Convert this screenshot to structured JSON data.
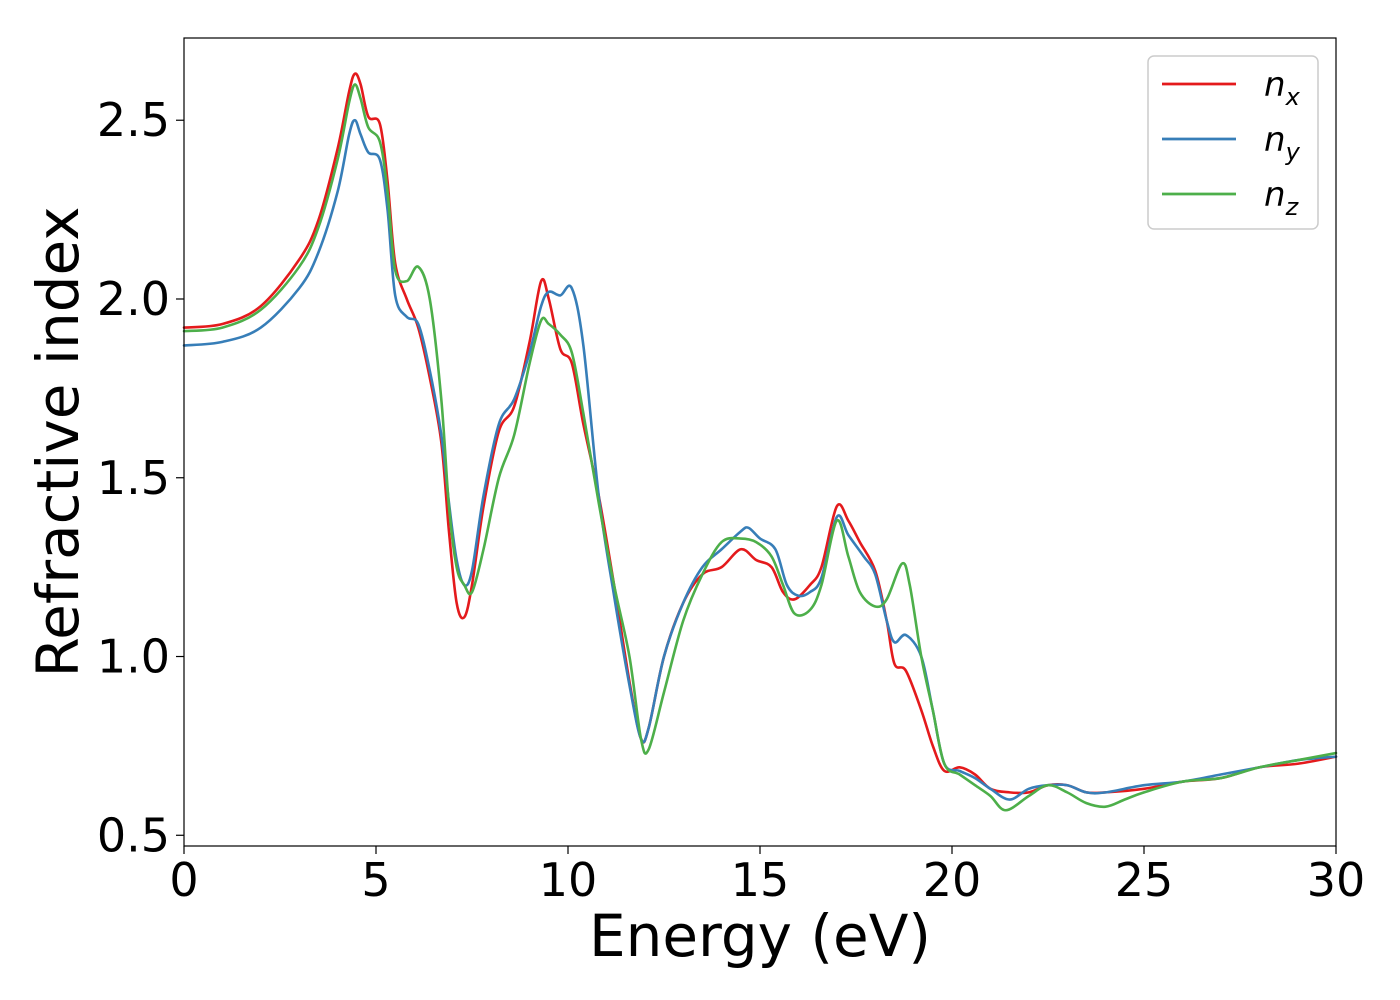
{
  "chart_data": {
    "type": "line",
    "title": "",
    "xlabel": "Energy (eV)",
    "ylabel": "Refractive index",
    "xlim": [
      0,
      30
    ],
    "ylim": [
      0.47,
      2.73
    ],
    "xticks": [
      0,
      5,
      10,
      15,
      20,
      25,
      30
    ],
    "xtick_labels": [
      "0",
      "5",
      "10",
      "15",
      "20",
      "25",
      "30"
    ],
    "yticks": [
      0.5,
      1.0,
      1.5,
      2.0,
      2.5
    ],
    "ytick_labels": [
      "0.5",
      "1.0",
      "1.5",
      "2.0",
      "2.5"
    ],
    "grid": false,
    "legend_position": "top-right",
    "series": [
      {
        "name": "n_x",
        "label_base": "n",
        "label_sub": "x",
        "color": "#e41a1c",
        "points": [
          [
            0,
            1.92
          ],
          [
            1,
            1.93
          ],
          [
            2,
            1.98
          ],
          [
            3,
            2.11
          ],
          [
            3.5,
            2.22
          ],
          [
            4,
            2.42
          ],
          [
            4.3,
            2.58
          ],
          [
            4.45,
            2.63
          ],
          [
            4.6,
            2.6
          ],
          [
            4.8,
            2.51
          ],
          [
            5.1,
            2.49
          ],
          [
            5.3,
            2.33
          ],
          [
            5.5,
            2.1
          ],
          [
            5.8,
            2.0
          ],
          [
            6.1,
            1.92
          ],
          [
            6.4,
            1.78
          ],
          [
            6.7,
            1.6
          ],
          [
            6.9,
            1.35
          ],
          [
            7.1,
            1.15
          ],
          [
            7.3,
            1.11
          ],
          [
            7.5,
            1.2
          ],
          [
            7.8,
            1.42
          ],
          [
            8.2,
            1.63
          ],
          [
            8.6,
            1.7
          ],
          [
            9.0,
            1.88
          ],
          [
            9.3,
            2.05
          ],
          [
            9.5,
            2.0
          ],
          [
            9.8,
            1.86
          ],
          [
            10.1,
            1.82
          ],
          [
            10.4,
            1.65
          ],
          [
            10.8,
            1.45
          ],
          [
            11.2,
            1.2
          ],
          [
            11.6,
            0.93
          ],
          [
            11.9,
            0.77
          ],
          [
            12.1,
            0.8
          ],
          [
            12.5,
            1.0
          ],
          [
            13.0,
            1.15
          ],
          [
            13.5,
            1.23
          ],
          [
            14.0,
            1.25
          ],
          [
            14.5,
            1.3
          ],
          [
            14.9,
            1.27
          ],
          [
            15.3,
            1.25
          ],
          [
            15.6,
            1.18
          ],
          [
            15.9,
            1.16
          ],
          [
            16.3,
            1.2
          ],
          [
            16.6,
            1.25
          ],
          [
            17.0,
            1.42
          ],
          [
            17.3,
            1.38
          ],
          [
            17.6,
            1.32
          ],
          [
            18.0,
            1.24
          ],
          [
            18.3,
            1.1
          ],
          [
            18.5,
            0.98
          ],
          [
            18.8,
            0.96
          ],
          [
            19.2,
            0.85
          ],
          [
            19.5,
            0.75
          ],
          [
            19.8,
            0.68
          ],
          [
            20.2,
            0.69
          ],
          [
            20.6,
            0.67
          ],
          [
            21.0,
            0.63
          ],
          [
            21.5,
            0.62
          ],
          [
            22.0,
            0.62
          ],
          [
            22.5,
            0.64
          ],
          [
            23.0,
            0.64
          ],
          [
            23.5,
            0.62
          ],
          [
            24.0,
            0.62
          ],
          [
            25.0,
            0.63
          ],
          [
            26.0,
            0.65
          ],
          [
            27.0,
            0.66
          ],
          [
            28.0,
            0.69
          ],
          [
            29.0,
            0.7
          ],
          [
            30.0,
            0.72
          ]
        ]
      },
      {
        "name": "n_y",
        "label_base": "n",
        "label_sub": "y",
        "color": "#377eb8",
        "points": [
          [
            0,
            1.87
          ],
          [
            1,
            1.88
          ],
          [
            2,
            1.92
          ],
          [
            3,
            2.03
          ],
          [
            3.5,
            2.13
          ],
          [
            4,
            2.3
          ],
          [
            4.3,
            2.46
          ],
          [
            4.45,
            2.5
          ],
          [
            4.6,
            2.46
          ],
          [
            4.8,
            2.41
          ],
          [
            5.1,
            2.39
          ],
          [
            5.3,
            2.25
          ],
          [
            5.5,
            2.01
          ],
          [
            5.8,
            1.95
          ],
          [
            6.1,
            1.93
          ],
          [
            6.4,
            1.8
          ],
          [
            6.7,
            1.62
          ],
          [
            6.9,
            1.43
          ],
          [
            7.1,
            1.27
          ],
          [
            7.3,
            1.2
          ],
          [
            7.5,
            1.24
          ],
          [
            7.8,
            1.45
          ],
          [
            8.2,
            1.65
          ],
          [
            8.6,
            1.72
          ],
          [
            9.0,
            1.85
          ],
          [
            9.3,
            1.98
          ],
          [
            9.5,
            2.02
          ],
          [
            9.8,
            2.01
          ],
          [
            10.1,
            2.03
          ],
          [
            10.4,
            1.87
          ],
          [
            10.8,
            1.45
          ],
          [
            11.2,
            1.17
          ],
          [
            11.6,
            0.92
          ],
          [
            11.9,
            0.77
          ],
          [
            12.1,
            0.8
          ],
          [
            12.5,
            1.0
          ],
          [
            13.0,
            1.15
          ],
          [
            13.5,
            1.25
          ],
          [
            14.0,
            1.3
          ],
          [
            14.5,
            1.35
          ],
          [
            14.7,
            1.36
          ],
          [
            15.0,
            1.33
          ],
          [
            15.4,
            1.3
          ],
          [
            15.7,
            1.2
          ],
          [
            16.0,
            1.17
          ],
          [
            16.3,
            1.18
          ],
          [
            16.6,
            1.22
          ],
          [
            17.0,
            1.39
          ],
          [
            17.3,
            1.34
          ],
          [
            17.7,
            1.28
          ],
          [
            18.0,
            1.23
          ],
          [
            18.3,
            1.1
          ],
          [
            18.5,
            1.04
          ],
          [
            18.8,
            1.06
          ],
          [
            19.2,
            1.0
          ],
          [
            19.5,
            0.85
          ],
          [
            19.8,
            0.7
          ],
          [
            20.2,
            0.68
          ],
          [
            20.6,
            0.66
          ],
          [
            21.0,
            0.63
          ],
          [
            21.5,
            0.6
          ],
          [
            22.0,
            0.63
          ],
          [
            22.5,
            0.64
          ],
          [
            23.0,
            0.64
          ],
          [
            23.5,
            0.62
          ],
          [
            24.0,
            0.62
          ],
          [
            25.0,
            0.64
          ],
          [
            26.0,
            0.65
          ],
          [
            27.0,
            0.67
          ],
          [
            28.0,
            0.69
          ],
          [
            29.0,
            0.71
          ],
          [
            30.0,
            0.72
          ]
        ]
      },
      {
        "name": "n_z",
        "label_base": "n",
        "label_sub": "z",
        "color": "#4daf4a",
        "points": [
          [
            0,
            1.91
          ],
          [
            1,
            1.92
          ],
          [
            2,
            1.97
          ],
          [
            3,
            2.09
          ],
          [
            3.5,
            2.2
          ],
          [
            4,
            2.39
          ],
          [
            4.3,
            2.55
          ],
          [
            4.45,
            2.6
          ],
          [
            4.6,
            2.56
          ],
          [
            4.8,
            2.48
          ],
          [
            5.1,
            2.44
          ],
          [
            5.3,
            2.3
          ],
          [
            5.5,
            2.08
          ],
          [
            5.8,
            2.05
          ],
          [
            6.1,
            2.09
          ],
          [
            6.4,
            2.0
          ],
          [
            6.7,
            1.72
          ],
          [
            6.9,
            1.42
          ],
          [
            7.1,
            1.25
          ],
          [
            7.3,
            1.2
          ],
          [
            7.5,
            1.18
          ],
          [
            7.8,
            1.3
          ],
          [
            8.2,
            1.5
          ],
          [
            8.6,
            1.62
          ],
          [
            9.0,
            1.82
          ],
          [
            9.3,
            1.94
          ],
          [
            9.5,
            1.93
          ],
          [
            9.8,
            1.9
          ],
          [
            10.1,
            1.85
          ],
          [
            10.4,
            1.68
          ],
          [
            10.8,
            1.43
          ],
          [
            11.2,
            1.2
          ],
          [
            11.6,
            1.0
          ],
          [
            11.9,
            0.77
          ],
          [
            12.1,
            0.74
          ],
          [
            12.5,
            0.9
          ],
          [
            13.0,
            1.1
          ],
          [
            13.5,
            1.23
          ],
          [
            14.0,
            1.32
          ],
          [
            14.5,
            1.33
          ],
          [
            14.9,
            1.32
          ],
          [
            15.3,
            1.28
          ],
          [
            15.6,
            1.2
          ],
          [
            15.9,
            1.12
          ],
          [
            16.3,
            1.13
          ],
          [
            16.6,
            1.2
          ],
          [
            17.0,
            1.38
          ],
          [
            17.3,
            1.28
          ],
          [
            17.6,
            1.18
          ],
          [
            18.0,
            1.14
          ],
          [
            18.3,
            1.16
          ],
          [
            18.7,
            1.26
          ],
          [
            18.9,
            1.2
          ],
          [
            19.2,
            1.0
          ],
          [
            19.5,
            0.85
          ],
          [
            19.8,
            0.7
          ],
          [
            20.2,
            0.67
          ],
          [
            20.6,
            0.64
          ],
          [
            21.0,
            0.61
          ],
          [
            21.4,
            0.57
          ],
          [
            22.0,
            0.61
          ],
          [
            22.5,
            0.64
          ],
          [
            23.0,
            0.62
          ],
          [
            23.5,
            0.59
          ],
          [
            24.0,
            0.58
          ],
          [
            24.5,
            0.6
          ],
          [
            25.0,
            0.62
          ],
          [
            26.0,
            0.65
          ],
          [
            27.0,
            0.66
          ],
          [
            28.0,
            0.69
          ],
          [
            29.0,
            0.71
          ],
          [
            30.0,
            0.73
          ]
        ]
      }
    ]
  }
}
